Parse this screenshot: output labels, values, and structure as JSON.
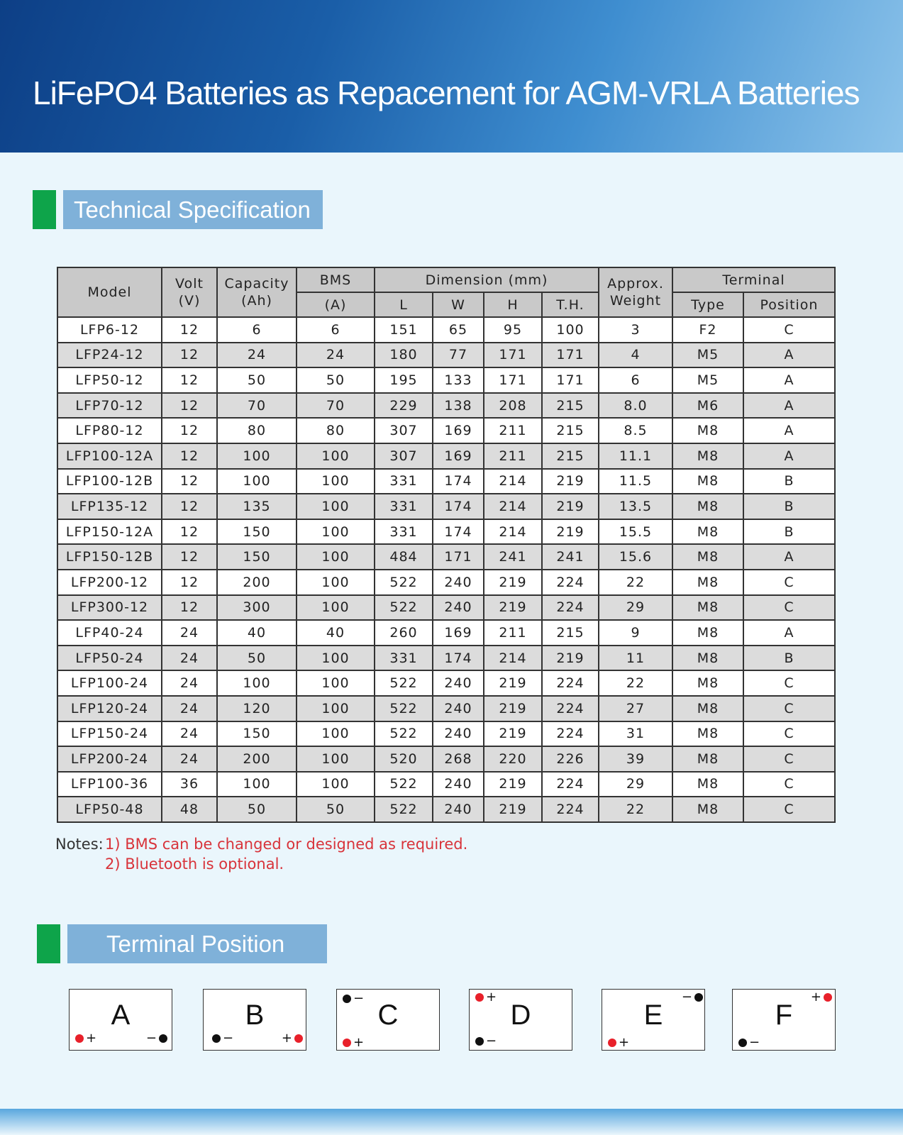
{
  "header": {
    "title": "LiFePO4 Batteries as Repacement for AGM-VRLA Batteries"
  },
  "spec": {
    "heading": "Technical Specification",
    "columns": {
      "model": "Model",
      "volt": "Volt\n(V)",
      "capacity": "Capacity\n(Ah)",
      "bms": "BMS",
      "bms_unit": "(A)",
      "dimension": "Dimension (mm)",
      "l": "L",
      "w": "W",
      "h": "H",
      "th": "T.H.",
      "weight": "Approx.\nWeight",
      "terminal": "Terminal",
      "type": "Type",
      "position": "Position"
    },
    "rows": [
      [
        "LFP6-12",
        "12",
        "6",
        "6",
        "151",
        "65",
        "95",
        "100",
        "3",
        "F2",
        "C"
      ],
      [
        "LFP24-12",
        "12",
        "24",
        "24",
        "180",
        "77",
        "171",
        "171",
        "4",
        "M5",
        "A"
      ],
      [
        "LFP50-12",
        "12",
        "50",
        "50",
        "195",
        "133",
        "171",
        "171",
        "6",
        "M5",
        "A"
      ],
      [
        "LFP70-12",
        "12",
        "70",
        "70",
        "229",
        "138",
        "208",
        "215",
        "8.0",
        "M6",
        "A"
      ],
      [
        "LFP80-12",
        "12",
        "80",
        "80",
        "307",
        "169",
        "211",
        "215",
        "8.5",
        "M8",
        "A"
      ],
      [
        "LFP100-12A",
        "12",
        "100",
        "100",
        "307",
        "169",
        "211",
        "215",
        "11.1",
        "M8",
        "A"
      ],
      [
        "LFP100-12B",
        "12",
        "100",
        "100",
        "331",
        "174",
        "214",
        "219",
        "11.5",
        "M8",
        "B"
      ],
      [
        "LFP135-12",
        "12",
        "135",
        "100",
        "331",
        "174",
        "214",
        "219",
        "13.5",
        "M8",
        "B"
      ],
      [
        "LFP150-12A",
        "12",
        "150",
        "100",
        "331",
        "174",
        "214",
        "219",
        "15.5",
        "M8",
        "B"
      ],
      [
        "LFP150-12B",
        "12",
        "150",
        "100",
        "484",
        "171",
        "241",
        "241",
        "15.6",
        "M8",
        "A"
      ],
      [
        "LFP200-12",
        "12",
        "200",
        "100",
        "522",
        "240",
        "219",
        "224",
        "22",
        "M8",
        "C"
      ],
      [
        "LFP300-12",
        "12",
        "300",
        "100",
        "522",
        "240",
        "219",
        "224",
        "29",
        "M8",
        "C"
      ],
      [
        "LFP40-24",
        "24",
        "40",
        "40",
        "260",
        "169",
        "211",
        "215",
        "9",
        "M8",
        "A"
      ],
      [
        "LFP50-24",
        "24",
        "50",
        "100",
        "331",
        "174",
        "214",
        "219",
        "11",
        "M8",
        "B"
      ],
      [
        "LFP100-24",
        "24",
        "100",
        "100",
        "522",
        "240",
        "219",
        "224",
        "22",
        "M8",
        "C"
      ],
      [
        "LFP120-24",
        "24",
        "120",
        "100",
        "522",
        "240",
        "219",
        "224",
        "27",
        "M8",
        "C"
      ],
      [
        "LFP150-24",
        "24",
        "150",
        "100",
        "522",
        "240",
        "219",
        "224",
        "31",
        "M8",
        "C"
      ],
      [
        "LFP200-24",
        "24",
        "200",
        "100",
        "520",
        "268",
        "220",
        "226",
        "39",
        "M8",
        "C"
      ],
      [
        "LFP100-36",
        "36",
        "100",
        "100",
        "522",
        "240",
        "219",
        "224",
        "29",
        "M8",
        "C"
      ],
      [
        "LFP50-48",
        "48",
        "50",
        "50",
        "522",
        "240",
        "219",
        "224",
        "22",
        "M8",
        "C"
      ]
    ]
  },
  "notes": {
    "label": "Notes:",
    "items": [
      "1) BMS can be changed or designed as required.",
      "2) Bluetooth is optional."
    ]
  },
  "terminal": {
    "heading": "Terminal Position",
    "positions": [
      {
        "label": "A",
        "plus": "+",
        "minus": "−"
      },
      {
        "label": "B",
        "plus": "+",
        "minus": "−"
      },
      {
        "label": "C",
        "plus": "+",
        "minus": "−"
      },
      {
        "label": "D",
        "plus": "+",
        "minus": "−"
      },
      {
        "label": "E",
        "plus": "+",
        "minus": "−"
      },
      {
        "label": "F",
        "plus": "+",
        "minus": "−"
      }
    ]
  }
}
